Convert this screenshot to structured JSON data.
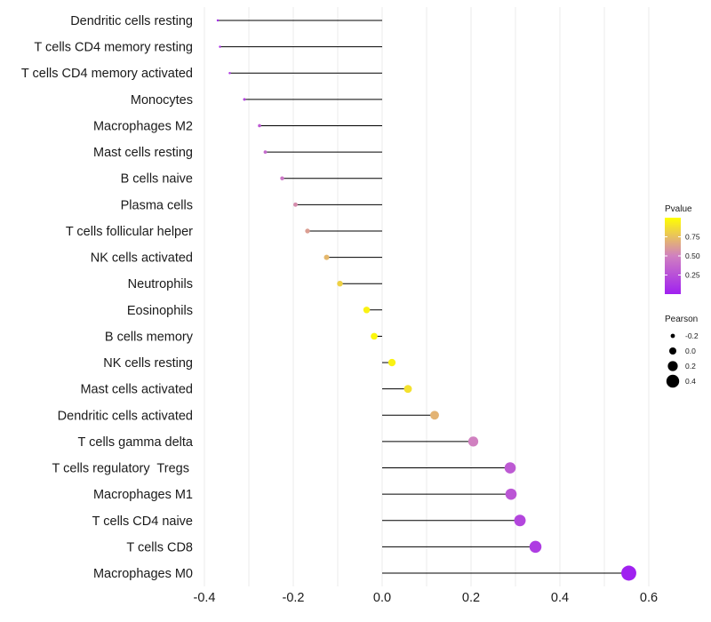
{
  "chart_data": {
    "type": "lollipop",
    "xlim": [
      -0.4,
      0.6
    ],
    "x_ticks": [
      -0.4,
      -0.2,
      0.0,
      0.2,
      0.4,
      0.6
    ],
    "x_tick_labels": [
      "-0.4",
      "-0.2",
      "0.0",
      "0.2",
      "0.4",
      "0.6"
    ],
    "categories": [
      "Dendritic cells resting",
      "T cells CD4 memory resting",
      "T cells CD4 memory activated",
      "Monocytes",
      "Macrophages M2",
      "Mast cells resting",
      "B cells naive",
      "Plasma cells",
      "T cells follicular helper",
      "NK cells activated",
      "Neutrophils",
      "Eosinophils",
      "B cells memory",
      "NK cells resting",
      "Mast cells activated",
      "Dendritic cells activated",
      "T cells gamma delta",
      "T cells regulatory  Tregs ",
      "Macrophages M1",
      "T cells CD4 naive",
      "T cells CD8",
      "Macrophages M0"
    ],
    "pearson": [
      -0.37,
      -0.365,
      -0.343,
      -0.31,
      -0.276,
      -0.263,
      -0.225,
      -0.195,
      -0.168,
      -0.125,
      -0.095,
      -0.035,
      -0.018,
      0.022,
      0.058,
      0.118,
      0.205,
      0.288,
      0.29,
      0.31,
      0.345,
      0.555
    ],
    "pvalue": [
      0.05,
      0.1,
      0.15,
      0.2,
      0.3,
      0.38,
      0.45,
      0.55,
      0.62,
      0.72,
      0.82,
      0.95,
      0.97,
      0.95,
      0.88,
      0.7,
      0.5,
      0.3,
      0.28,
      0.2,
      0.15,
      0.005
    ],
    "legend_pvalue": {
      "title": "Pvalue",
      "labels": [
        "0.75",
        "0.50",
        "0.25"
      ],
      "values": [
        0.75,
        0.5,
        0.25
      ],
      "range": [
        0.0,
        1.0
      ],
      "colors": {
        "low": "#a020f0",
        "mid": "#d080c0",
        "high": "#ffff00"
      },
      "placement": "right"
    },
    "legend_pearson": {
      "title": "Pearson",
      "labels": [
        "-0.2",
        "0.0",
        "0.2",
        "0.4"
      ],
      "values": [
        -0.2,
        0.0,
        0.2,
        0.4
      ],
      "placement": "right"
    },
    "grid": true
  }
}
